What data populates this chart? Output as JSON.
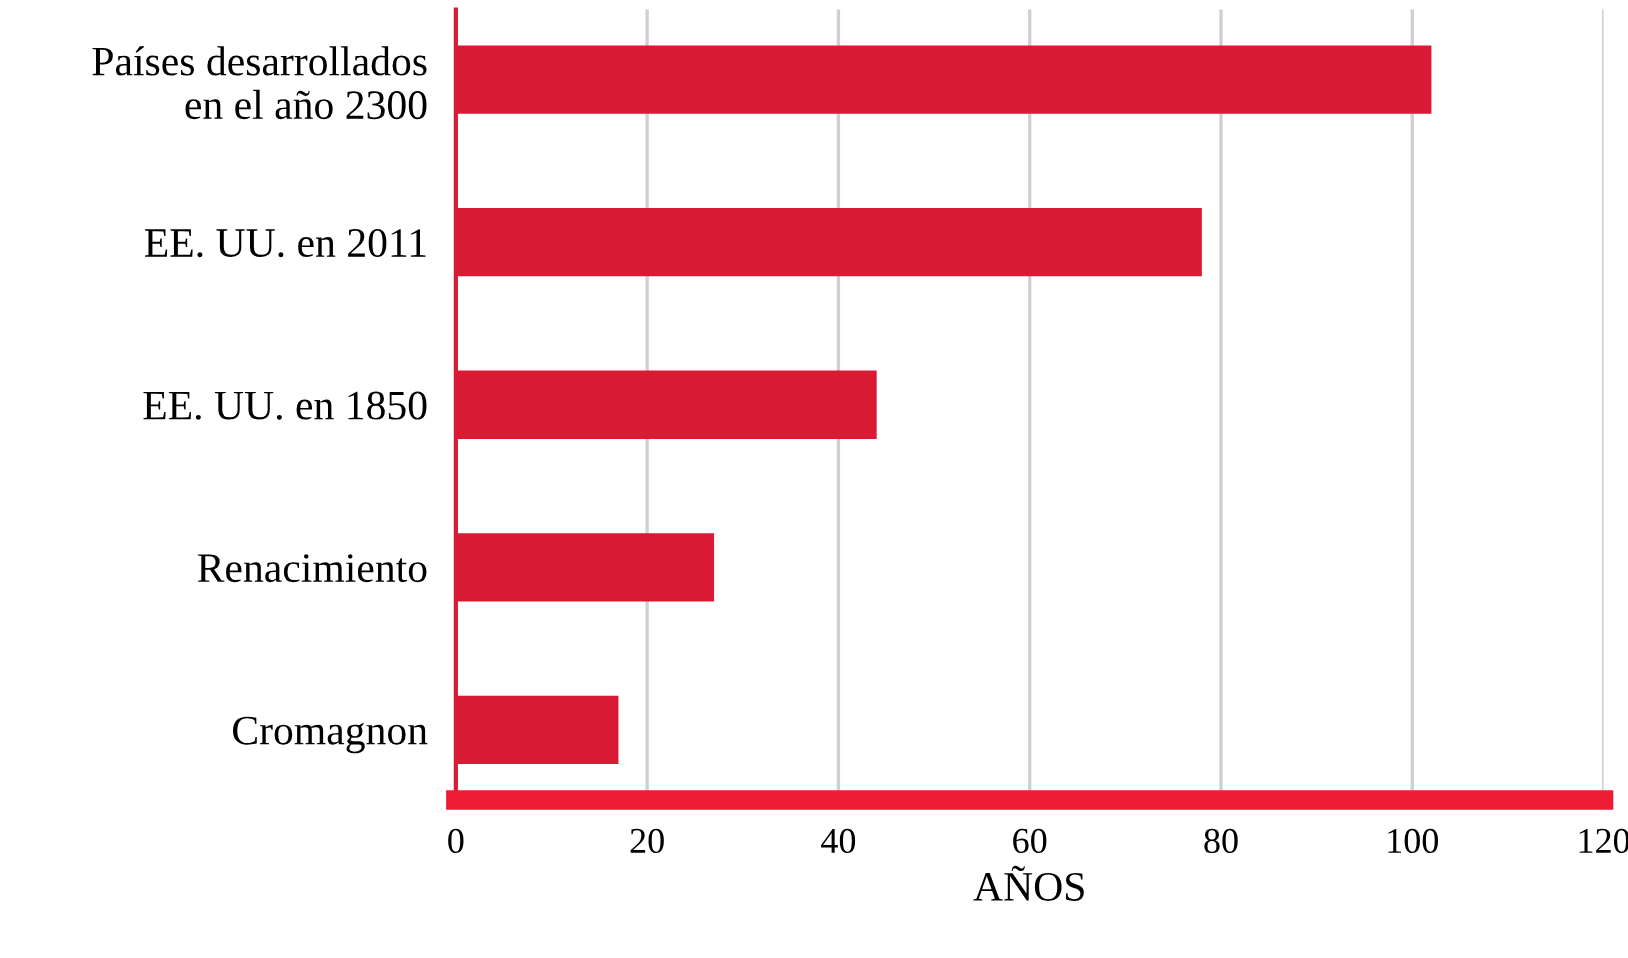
{
  "chart_data": {
    "type": "bar",
    "orientation": "horizontal",
    "xlabel": "AÑOS",
    "categories": [
      "Países desarrollados\nen el año 2300",
      "EE. UU. en 2011",
      "EE. UU. en 1850",
      "Renacimiento",
      "Cromagnon"
    ],
    "values": [
      102,
      78,
      44,
      27,
      17
    ],
    "color": "#d91a35",
    "xlim": [
      0,
      120
    ],
    "xticks": [
      0,
      20,
      40,
      60,
      80,
      100,
      120
    ],
    "grid": "x"
  }
}
